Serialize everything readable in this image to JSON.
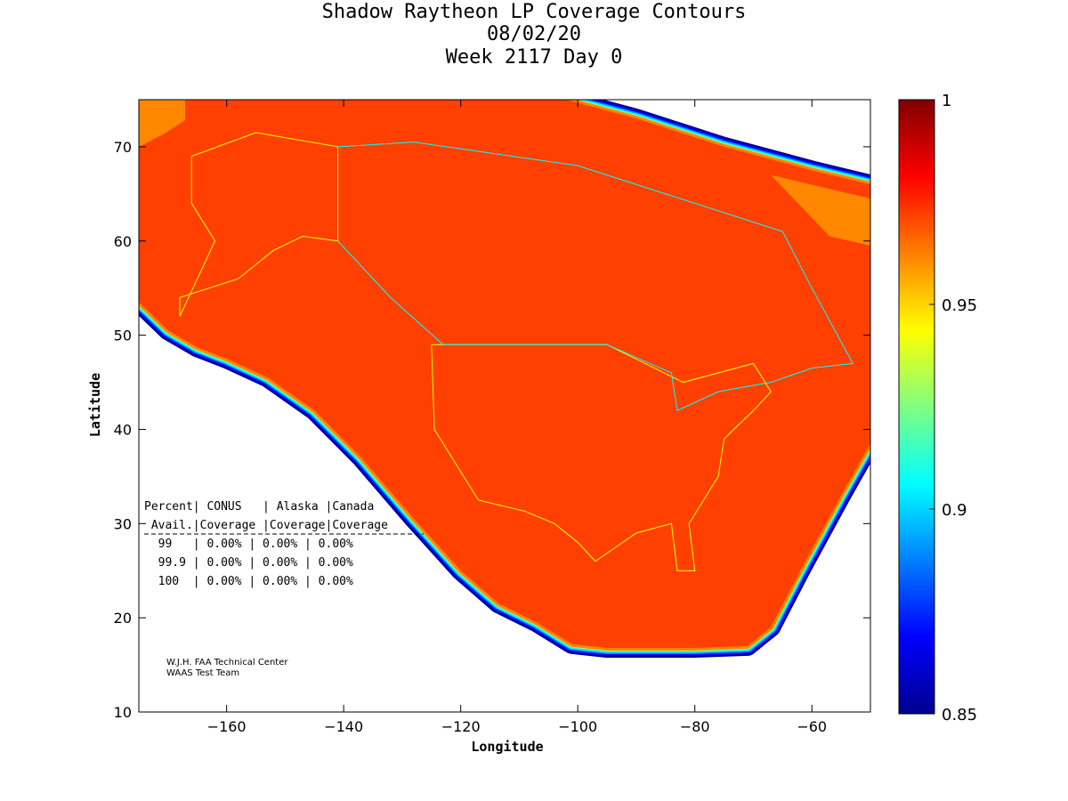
{
  "chart_data": {
    "type": "heatmap",
    "title": [
      "Shadow Raytheon LP Coverage Contours",
      "08/02/20",
      "Week 2117 Day 0"
    ],
    "xlabel": "Longitude",
    "ylabel": "Latitude",
    "xlim": [
      -175,
      -50
    ],
    "ylim": [
      10,
      75
    ],
    "xticks": [
      -160,
      -140,
      -120,
      -100,
      -80,
      -60
    ],
    "yticks": [
      10,
      20,
      30,
      40,
      50,
      60,
      70
    ],
    "colorbar": {
      "range": [
        0.85,
        1
      ],
      "ticks": [
        "0.85",
        "0.9",
        "0.95",
        "1"
      ],
      "colormap": "jet"
    },
    "coverage_value": 0.975,
    "coverage_boundary_lonlat": [
      [
        -175,
        75
      ],
      [
        -102,
        75
      ],
      [
        -90,
        73
      ],
      [
        -75,
        70
      ],
      [
        -60,
        67.5
      ],
      [
        -50,
        66
      ],
      [
        -50,
        38.5
      ],
      [
        -55,
        33
      ],
      [
        -62,
        25
      ],
      [
        -67,
        19
      ],
      [
        -71,
        17
      ],
      [
        -80,
        16.8
      ],
      [
        -95,
        16.8
      ],
      [
        -101,
        17.2
      ],
      [
        -107,
        19.5
      ],
      [
        -113.5,
        21.5
      ],
      [
        -120,
        25
      ],
      [
        -128,
        30.5
      ],
      [
        -137,
        37
      ],
      [
        -145,
        42
      ],
      [
        -153,
        45.5
      ],
      [
        -160,
        47.5
      ],
      [
        -165,
        48.7
      ],
      [
        -170,
        50.5
      ],
      [
        -175,
        53.5
      ]
    ],
    "table": {
      "header1": "Percent| CONUS   | Alaska |Canada",
      "header2": " Avail.|Coverage |Coverage|Coverage",
      "rows": [
        "  99   | 0.00% | 0.00% | 0.00%",
        "  99.9 | 0.00% | 0.00% | 0.00%",
        "  100  | 0.00% | 0.00% | 0.00%"
      ]
    },
    "credit": [
      "W.J.H. FAA Technical Center",
      "WAAS Test Team"
    ]
  }
}
